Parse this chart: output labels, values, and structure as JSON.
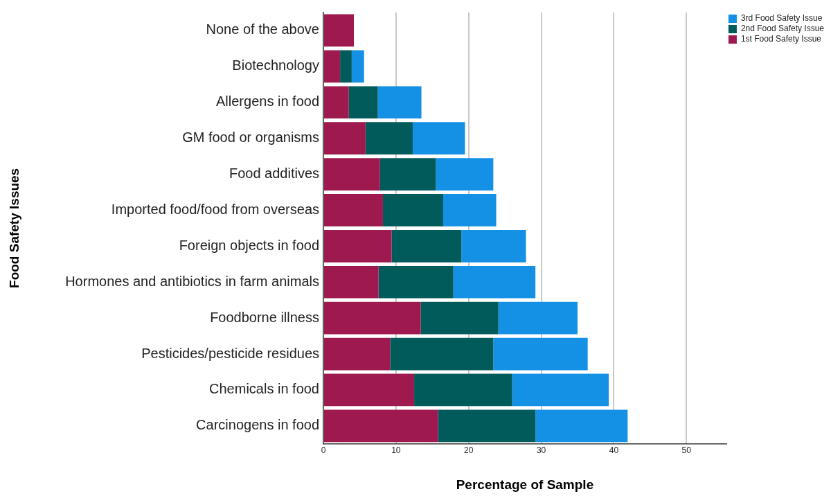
{
  "chart_data": {
    "type": "bar",
    "orientation": "horizontal",
    "stacked": true,
    "xlabel": "Percentage of Sample",
    "ylabel": "Food Safety Issues",
    "categories": [
      "None of the above",
      "Biotechnology",
      "Allergens in food",
      "GM food or organisms",
      "Food additives",
      "Imported food/food from overseas",
      "Foreign objects in food",
      "Hormones and antibiotics in farm animals",
      "Foodborne illness",
      "Pesticides/pesticide residues",
      "Chemicals in food",
      "Carcinogens in food"
    ],
    "series": [
      {
        "name": "1st Food Safety Issue",
        "color": "#9e1a4e",
        "values": [
          4.2,
          2.3,
          3.5,
          5.8,
          7.8,
          8.2,
          9.4,
          7.6,
          13.4,
          9.2,
          12.5,
          15.8
        ]
      },
      {
        "name": "2nd Food Safety Issue",
        "color": "#005b5a",
        "values": [
          null,
          1.6,
          4.0,
          6.5,
          7.7,
          8.3,
          9.6,
          10.3,
          10.7,
          14.2,
          13.5,
          13.4
        ]
      },
      {
        "name": "3rd Food Safety Issue",
        "color": "#1490e5",
        "values": [
          null,
          1.7,
          6.0,
          7.2,
          7.9,
          7.3,
          8.9,
          11.3,
          10.9,
          13.0,
          13.3,
          12.7
        ]
      }
    ],
    "xlim": [
      0,
      55.5
    ],
    "xticks": [
      0,
      10,
      20,
      30,
      40,
      50
    ],
    "grid": "x",
    "legend": "top right"
  }
}
